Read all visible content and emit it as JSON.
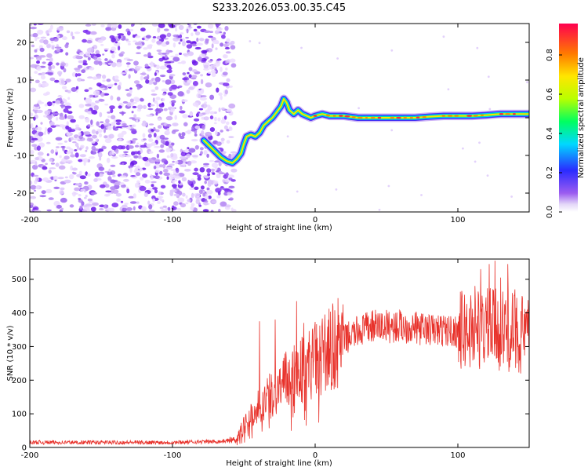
{
  "title": "S233.2026.053.00.35.C45",
  "chart_data": [
    {
      "type": "heatmap",
      "name": "spectrogram",
      "xlabel": "Height of straight line (km)",
      "ylabel": "Frequency (Hz)",
      "xlim": [
        -200,
        150
      ],
      "ylim": [
        -25,
        25
      ],
      "xticks": [
        "-200",
        "-100",
        "0",
        "100"
      ],
      "yticks": [
        "-20",
        "-10",
        "0",
        "10",
        "20"
      ],
      "noise_region_x": [
        -200,
        -60
      ],
      "track": [
        {
          "x": -78,
          "y": -6
        },
        {
          "x": -74,
          "y": -7.5
        },
        {
          "x": -70,
          "y": -9
        },
        {
          "x": -66,
          "y": -10.5
        },
        {
          "x": -62,
          "y": -11.5
        },
        {
          "x": -58,
          "y": -12
        },
        {
          "x": -55,
          "y": -11
        },
        {
          "x": -52,
          "y": -9.5
        },
        {
          "x": -50,
          "y": -7
        },
        {
          "x": -48,
          "y": -5
        },
        {
          "x": -45,
          "y": -4.5
        },
        {
          "x": -42,
          "y": -5
        },
        {
          "x": -39,
          "y": -4
        },
        {
          "x": -36,
          "y": -2
        },
        {
          "x": -33,
          "y": -1
        },
        {
          "x": -30,
          "y": 0
        },
        {
          "x": -27,
          "y": 1.5
        },
        {
          "x": -24,
          "y": 3
        },
        {
          "x": -22,
          "y": 5
        },
        {
          "x": -20,
          "y": 4
        },
        {
          "x": -18,
          "y": 2
        },
        {
          "x": -15,
          "y": 1
        },
        {
          "x": -12,
          "y": 2
        },
        {
          "x": -9,
          "y": 1
        },
        {
          "x": -6,
          "y": 0.5
        },
        {
          "x": -3,
          "y": 0
        },
        {
          "x": 0,
          "y": 0.5
        },
        {
          "x": 5,
          "y": 1
        },
        {
          "x": 10,
          "y": 0.5
        },
        {
          "x": 20,
          "y": 0.5
        },
        {
          "x": 30,
          "y": 0
        },
        {
          "x": 40,
          "y": 0
        },
        {
          "x": 50,
          "y": 0
        },
        {
          "x": 60,
          "y": 0
        },
        {
          "x": 70,
          "y": 0
        },
        {
          "x": 80,
          "y": 0.3
        },
        {
          "x": 90,
          "y": 0.5
        },
        {
          "x": 100,
          "y": 0.5
        },
        {
          "x": 110,
          "y": 0.5
        },
        {
          "x": 120,
          "y": 0.7
        },
        {
          "x": 130,
          "y": 1
        },
        {
          "x": 140,
          "y": 1
        },
        {
          "x": 150,
          "y": 1
        }
      ],
      "colorbar": {
        "label": "Normalized spectral amplitude",
        "range": [
          0,
          0.96
        ],
        "ticks": [
          "0.0",
          "0.2",
          "0.4",
          "0.6",
          "0.8"
        ]
      }
    },
    {
      "type": "line",
      "name": "snr",
      "xlabel": "Height of straight line (km)",
      "ylabel": "SNR (10 * v/v)",
      "xlim": [
        -200,
        150
      ],
      "ylim": [
        0,
        560
      ],
      "xticks": [
        "-200",
        "-100",
        "0",
        "100"
      ],
      "yticks": [
        "0",
        "100",
        "200",
        "300",
        "400",
        "500"
      ],
      "color": "#e8322b",
      "envelope": [
        {
          "x": -200,
          "y": 15
        },
        {
          "x": -100,
          "y": 15
        },
        {
          "x": -65,
          "y": 18
        },
        {
          "x": -55,
          "y": 25
        },
        {
          "x": -48,
          "y": 80
        },
        {
          "x": -40,
          "y": 120
        },
        {
          "x": -30,
          "y": 160
        },
        {
          "x": -20,
          "y": 200
        },
        {
          "x": -10,
          "y": 230
        },
        {
          "x": 0,
          "y": 260
        },
        {
          "x": 10,
          "y": 290
        },
        {
          "x": 20,
          "y": 320
        },
        {
          "x": 30,
          "y": 345
        },
        {
          "x": 40,
          "y": 360
        },
        {
          "x": 60,
          "y": 360
        },
        {
          "x": 80,
          "y": 350
        },
        {
          "x": 100,
          "y": 345
        },
        {
          "x": 120,
          "y": 355
        },
        {
          "x": 140,
          "y": 340
        },
        {
          "x": 150,
          "y": 330
        }
      ],
      "spikes": [
        {
          "x": -39,
          "y": 375
        },
        {
          "x": -28,
          "y": 380
        },
        {
          "x": -13,
          "y": 435
        },
        {
          "x": -8,
          "y": 370
        },
        {
          "x": 112,
          "y": 480
        },
        {
          "x": 116,
          "y": 530
        },
        {
          "x": 122,
          "y": 545
        },
        {
          "x": 126,
          "y": 555
        },
        {
          "x": 130,
          "y": 505
        },
        {
          "x": 135,
          "y": 545
        },
        {
          "x": 140,
          "y": 470
        },
        {
          "x": 145,
          "y": 450
        }
      ]
    }
  ]
}
